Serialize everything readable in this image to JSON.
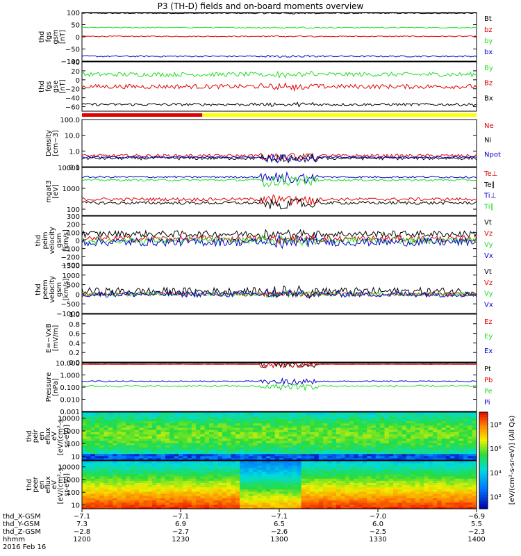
{
  "title": "P3 (TH-D) fields and on-board moments overview",
  "colors": {
    "black": "#000000",
    "red": "#e00000",
    "green": "#22dd22",
    "blue": "#0000cc",
    "yellow": "#ffff00"
  },
  "chart_data": [
    {
      "type": "line",
      "panel": "fgs_gsm",
      "ylabel": [
        "thd",
        "fgs",
        "gsm",
        "[nT]"
      ],
      "ylim": [
        -100,
        100
      ],
      "ticks": [
        "100",
        "50",
        "0",
        "−50",
        "−100"
      ],
      "tick_values": [
        100,
        50,
        0,
        -50,
        -100
      ],
      "series": [
        {
          "name": "Bt",
          "color": "#000000",
          "level": 97,
          "noise": 2
        },
        {
          "name": "bz",
          "color": "#e00000",
          "level": 2,
          "noise": 2
        },
        {
          "name": "by",
          "color": "#22dd22",
          "level": 38,
          "noise": 2
        },
        {
          "name": "bx",
          "color": "#0000cc",
          "level": -80,
          "noise": 3
        }
      ]
    },
    {
      "type": "line",
      "panel": "fgs_gse",
      "ylabel": [
        "thd",
        "fgs",
        "gse",
        "[nT]"
      ],
      "ylim": [
        -70,
        40
      ],
      "ticks": [
        "40",
        "20",
        "0",
        "−20",
        "−40",
        "−60"
      ],
      "tick_values": [
        40,
        20,
        0,
        -20,
        -40,
        -60
      ],
      "series": [
        {
          "name": "By",
          "color": "#22dd22",
          "level": 12,
          "noise": 5
        },
        {
          "name": "Bz",
          "color": "#e00000",
          "level": -15,
          "noise": 5
        },
        {
          "name": "Bx",
          "color": "#000000",
          "level": -55,
          "noise": 3
        }
      ]
    },
    {
      "type": "line",
      "panel": "density",
      "scale": "log",
      "ylabel": [
        "Density",
        "[cm−3]"
      ],
      "ylim": [
        0.1,
        100
      ],
      "ticks": [
        "100.0",
        "10.0",
        "1.0",
        "0.1"
      ],
      "tick_values": [
        100,
        10,
        1,
        0.1
      ],
      "series": [
        {
          "name": "Ne",
          "color": "#e00000",
          "level": 0.5,
          "noise": 0.2
        },
        {
          "name": "Ni",
          "color": "#000000",
          "level": 0.35,
          "noise": 0.2
        },
        {
          "name": "Npot",
          "color": "#0000cc",
          "level": 0.4,
          "noise": 0.1
        }
      ]
    },
    {
      "type": "line",
      "panel": "temperature",
      "scale": "log",
      "ylabel": [
        "mgat3",
        "[eV]"
      ],
      "ylim": [
        50,
        10000
      ],
      "ticks": [
        "10000",
        "1000",
        "100"
      ],
      "tick_values": [
        10000,
        1000,
        100
      ],
      "series": [
        {
          "name": "Te⊥",
          "color": "#e00000",
          "level": 300,
          "noise": 0.15
        },
        {
          "name": "Te∥",
          "color": "#000000",
          "level": 200,
          "noise": 0.15
        },
        {
          "name": "Ti⊥",
          "color": "#0000cc",
          "level": 3500,
          "noise": 0.1
        },
        {
          "name": "Ti∥",
          "color": "#22dd22",
          "level": 2500,
          "noise": 0.1
        }
      ]
    },
    {
      "type": "line",
      "panel": "peim_velocity",
      "ylabel": [
        "thd",
        "peim",
        "velocity",
        "gsm",
        "[km/s]"
      ],
      "ylim": [
        -300,
        300
      ],
      "ticks": [
        "300",
        "200",
        "100",
        "0",
        "−100",
        "−200",
        "−300"
      ],
      "tick_values": [
        300,
        200,
        100,
        0,
        -100,
        -200,
        -300
      ],
      "series": [
        {
          "name": "Vt",
          "color": "#000000",
          "level": 80,
          "noise": 40
        },
        {
          "name": "Vz",
          "color": "#e00000",
          "level": 20,
          "noise": 40
        },
        {
          "name": "Vy",
          "color": "#22dd22",
          "level": 0,
          "noise": 40
        },
        {
          "name": "Vx",
          "color": "#0000cc",
          "level": -20,
          "noise": 50
        }
      ]
    },
    {
      "type": "line",
      "panel": "peem_velocity",
      "ylabel": [
        "thd",
        "peem",
        "velocity",
        "gsm",
        "[km/s]"
      ],
      "ylim": [
        -1000,
        1500
      ],
      "ticks": [
        "1500",
        "1000",
        "500",
        "0",
        "−500",
        "−1000"
      ],
      "tick_values": [
        1500,
        1000,
        500,
        0,
        -500,
        -1000
      ],
      "series": [
        {
          "name": "Vt",
          "color": "#000000",
          "level": 150,
          "noise": 200
        },
        {
          "name": "Vz",
          "color": "#e00000",
          "level": 0,
          "noise": 100
        },
        {
          "name": "Vy",
          "color": "#22dd22",
          "level": 0,
          "noise": 100
        },
        {
          "name": "Vx",
          "color": "#0000cc",
          "level": 0,
          "noise": 150
        }
      ]
    },
    {
      "type": "line",
      "panel": "efield",
      "ylabel": [
        "E=−VxB",
        "[mV/m]"
      ],
      "ylim": [
        0,
        1
      ],
      "ticks": [
        "1.0",
        "0.8",
        "0.6",
        "0.4",
        "0.2",
        "0.0"
      ],
      "tick_values": [
        1,
        0.8,
        0.6,
        0.4,
        0.2,
        0
      ],
      "series": [
        {
          "name": "Ez",
          "color": "#e00000"
        },
        {
          "name": "Ey",
          "color": "#22dd22"
        },
        {
          "name": "Ex",
          "color": "#0000cc"
        }
      ]
    },
    {
      "type": "line",
      "panel": "pressure",
      "scale": "log",
      "ylabel": [
        "Pressure",
        "[nPa]"
      ],
      "ylim": [
        0.001,
        10
      ],
      "ticks": [
        "10.000",
        "1.000",
        "0.100",
        "0.010",
        "0.001"
      ],
      "tick_values": [
        10,
        1,
        0.1,
        0.01,
        0.001
      ],
      "series": [
        {
          "name": "Pt",
          "color": "#000000",
          "level": 8,
          "noise": 0.02
        },
        {
          "name": "Pb",
          "color": "#e00000",
          "level": 7.5,
          "noise": 0.02
        },
        {
          "name": "Pe",
          "color": "#22dd22",
          "level": 0.12,
          "noise": 0.15
        },
        {
          "name": "Pi",
          "color": "#0000cc",
          "level": 0.3,
          "noise": 0.1
        }
      ]
    },
    {
      "type": "heatmap",
      "panel": "peir_spectrogram",
      "scale": "log",
      "ylabel": [
        "thd",
        "peir",
        "en",
        "eflux",
        "eV",
        "[eV/(cm²-s-",
        "sr-eV)]"
      ],
      "ylim": [
        5,
        30000
      ],
      "ticks": [
        "10000",
        "1000",
        "100",
        "10"
      ],
      "tick_values": [
        10000,
        1000,
        100,
        10
      ]
    },
    {
      "type": "heatmap",
      "panel": "peer_spectrogram",
      "scale": "log",
      "ylabel": [
        "thd",
        "peer",
        "en",
        "eflux",
        "eV",
        "[eV/(cm²-s-",
        "sr-eV)]"
      ],
      "ylim": [
        5,
        30000
      ],
      "ticks": [
        "10000",
        "1000",
        "100",
        "10"
      ],
      "tick_values": [
        10000,
        1000,
        100,
        10
      ]
    },
    {
      "type": "colorbar",
      "label": "[eV/(cm²-s-sr-eV)] (All Qs)",
      "ticks": [
        "10⁸",
        "10⁶",
        "10⁴",
        "10²"
      ],
      "range_exp": [
        1,
        9
      ]
    }
  ],
  "x_axis": {
    "times": [
      "1200",
      "1230",
      "1300",
      "1330",
      "1400"
    ],
    "start": "1200",
    "end": "1400",
    "ephem_labels": [
      "thd_X-GSM",
      "thd_Y-GSM",
      "thd_Z-GSM",
      "hhmm",
      "2016 Feb 16"
    ],
    "ephem_rows": [
      [
        "−7.1",
        "−7.1",
        "−7.1",
        "−7.0",
        "−6.9"
      ],
      [
        "7.3",
        "6.9",
        "6.5",
        "6.0",
        "5.5"
      ],
      [
        "−2.8",
        "−2.7",
        "−2.6",
        "−2.5",
        "−2.3"
      ],
      [
        "1200",
        "1230",
        "1300",
        "1330",
        "1400"
      ]
    ]
  },
  "mode_bar": {
    "red_until": "1227",
    "yellow_from": "1227"
  }
}
